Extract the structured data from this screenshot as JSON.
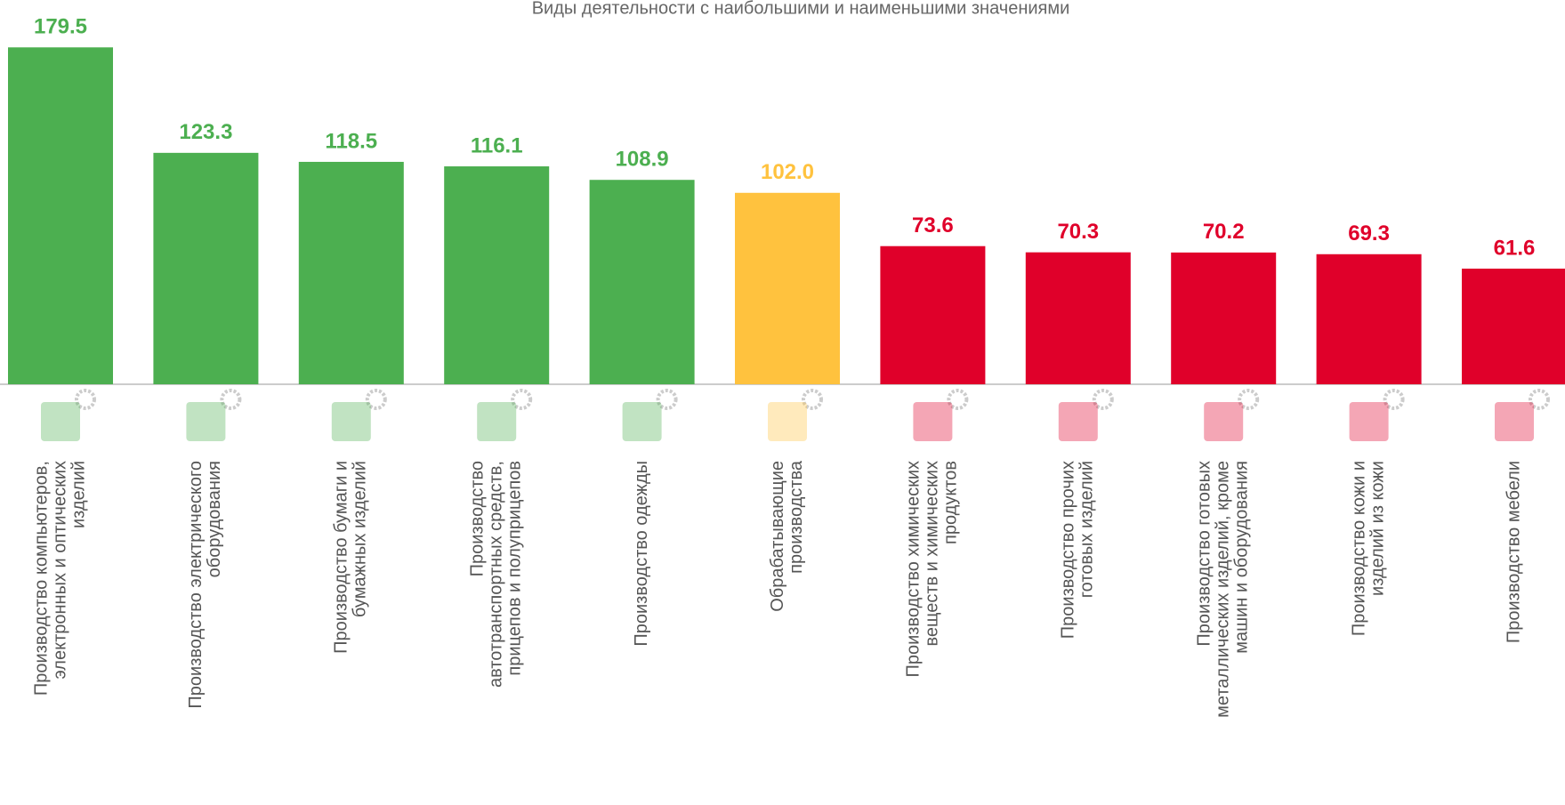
{
  "chart_data": {
    "type": "bar",
    "title": "Виды деятельности с наибольшими и наименьшими значениями",
    "categories": [
      [
        "Производство компьютеров,",
        "электронных и оптических",
        "изделий"
      ],
      [
        "Производство электрического",
        "оборудования"
      ],
      [
        "Производство бумаги и",
        "бумажных изделий"
      ],
      [
        "Производство",
        "автотранспортных средств,",
        "прицепов и полуприцепов"
      ],
      [
        "Производство одежды"
      ],
      [
        "Обрабатывающие",
        "производства"
      ],
      [
        "Производство химических",
        "веществ и химических",
        "продуктов"
      ],
      [
        "Производство прочих",
        "готовых изделий"
      ],
      [
        "Производство готовых",
        "металлических изделий, кроме",
        "машин и оборудования"
      ],
      [
        "Производство кожи и",
        "изделий из кожи"
      ],
      [
        "Производство мебели"
      ]
    ],
    "values": [
      179.5,
      123.3,
      118.5,
      116.1,
      108.9,
      102.0,
      73.6,
      70.3,
      70.2,
      69.3,
      61.6
    ],
    "value_labels": [
      "179.5",
      "123.3",
      "118.5",
      "116.1",
      "108.9",
      "102.0",
      "73.6",
      "70.3",
      "70.2",
      "69.3",
      "61.6"
    ],
    "colors": [
      "#4caf50",
      "#4caf50",
      "#4caf50",
      "#4caf50",
      "#4caf50",
      "#ffc23e",
      "#e0002a",
      "#e0002a",
      "#e0002a",
      "#e0002a",
      "#e0002a"
    ]
  }
}
